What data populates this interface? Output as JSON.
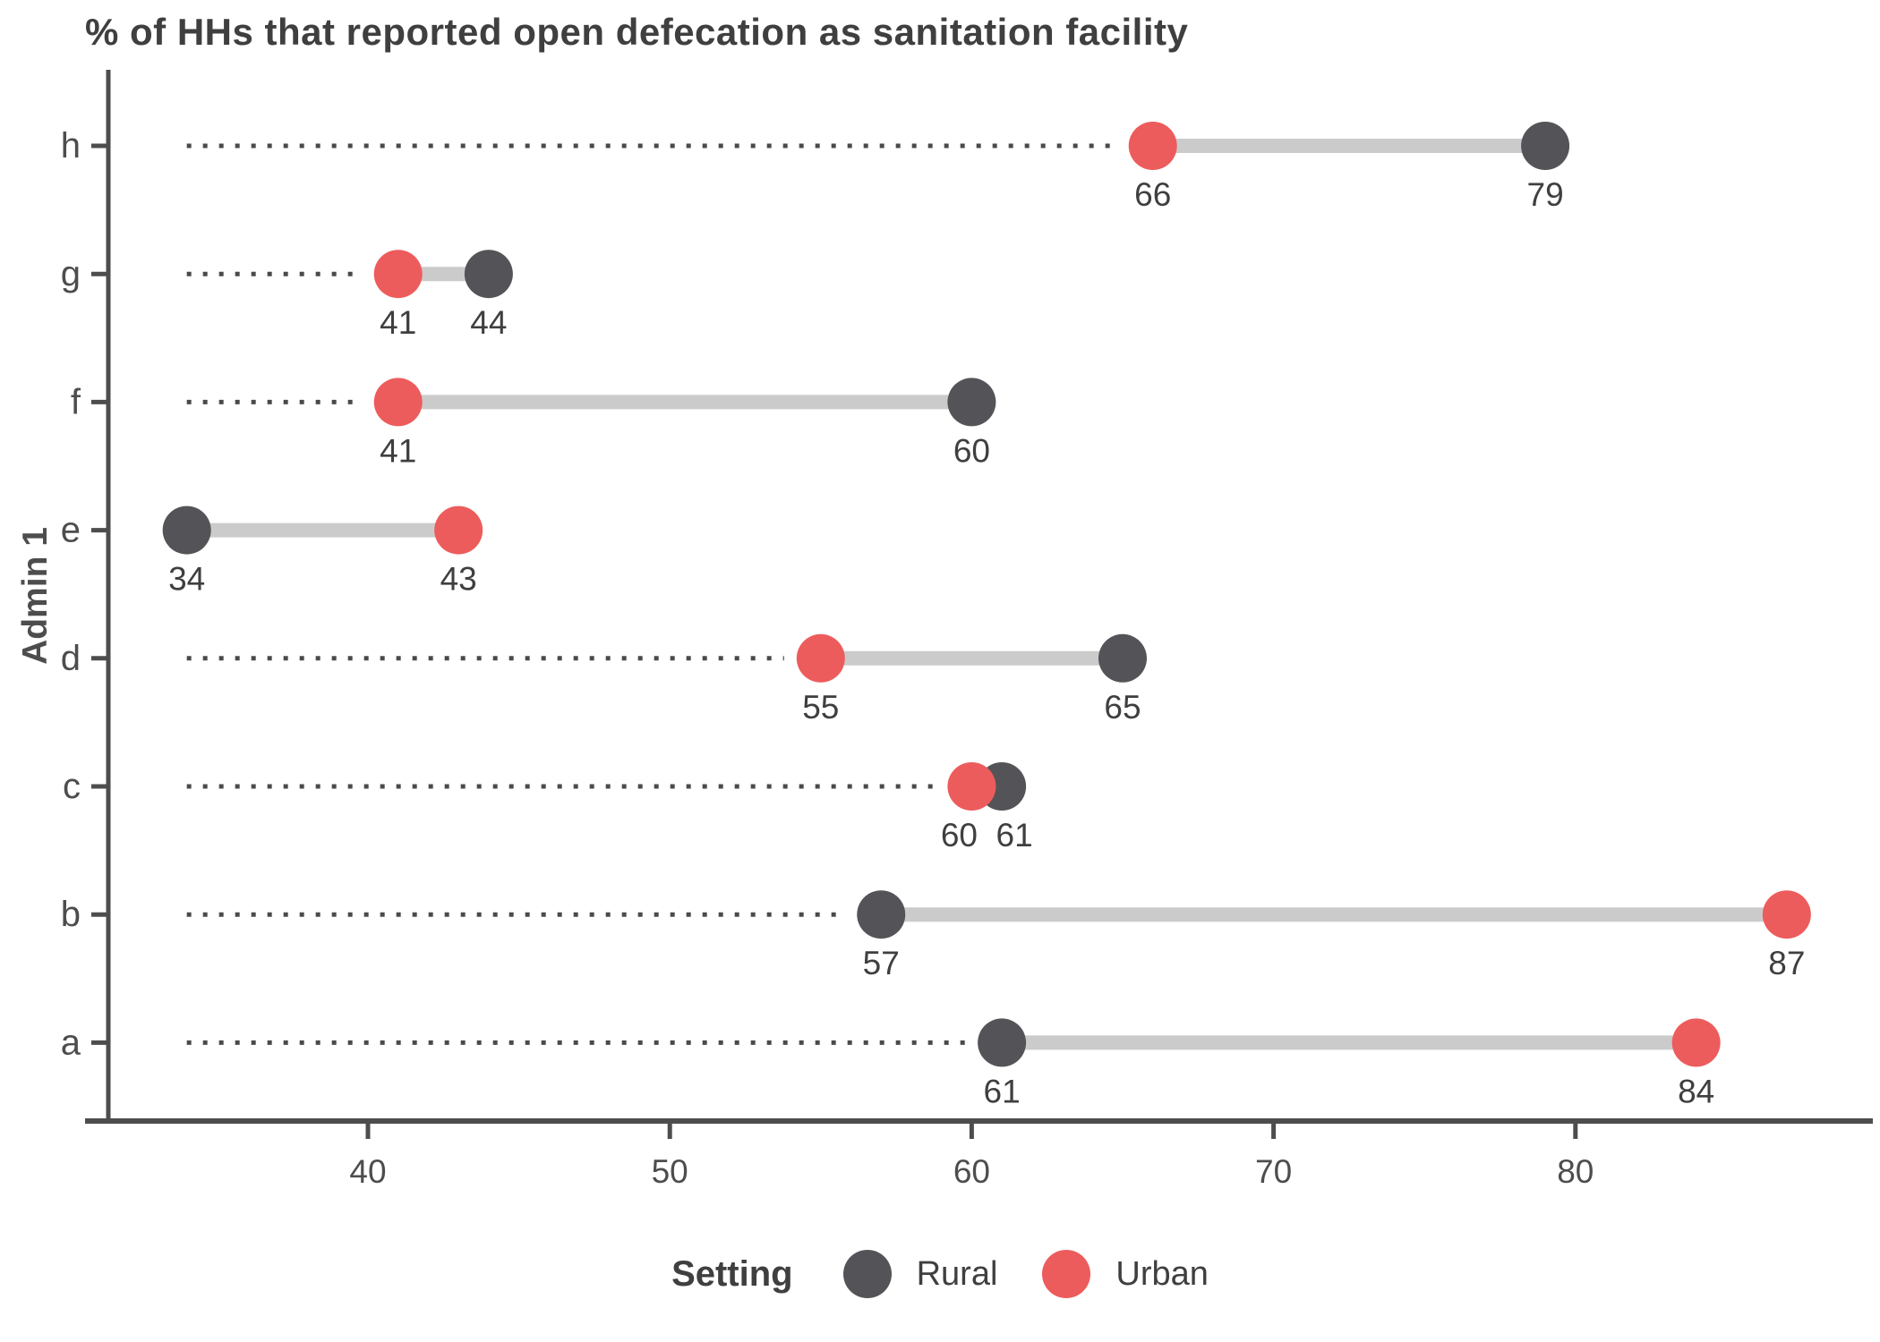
{
  "title": "% of HHs that reported open defecation as sanitation facility",
  "y_axis_label": "Admin 1",
  "legend": {
    "title": "Setting",
    "items": [
      {
        "label": "Rural",
        "color": "#545357"
      },
      {
        "label": "Urban",
        "color": "#ED5C5C"
      }
    ]
  },
  "colors": {
    "rural": "#545357",
    "urban": "#ED5C5C",
    "connector": "#CBCBCB",
    "leader_dots": "#4A4A4A",
    "axis_line": "#4D4D4D",
    "value_text": "#3F3F3F",
    "tick_text": "#4D4D4D"
  },
  "chart_data": {
    "type": "dumbbell",
    "orientation": "horizontal",
    "title": "% of HHs that reported open defecation as sanitation facility",
    "ylabel": "Admin 1",
    "categories": [
      "h",
      "g",
      "f",
      "e",
      "d",
      "c",
      "b",
      "a"
    ],
    "series": [
      {
        "name": "Rural",
        "color": "#545357",
        "values": [
          79,
          44,
          60,
          34,
          65,
          61,
          57,
          61
        ]
      },
      {
        "name": "Urban",
        "color": "#ED5C5C",
        "values": [
          66,
          41,
          41,
          43,
          55,
          60,
          87,
          84
        ]
      }
    ],
    "x_ticks": [
      40,
      50,
      60,
      70,
      80
    ],
    "xlim": [
      31.4,
      89.9
    ],
    "grid": false,
    "legend_position": "bottom",
    "notes": "dotted leader line runs from global minimum value (34) to the leftmost dot of each row; value labels printed under each dot"
  }
}
